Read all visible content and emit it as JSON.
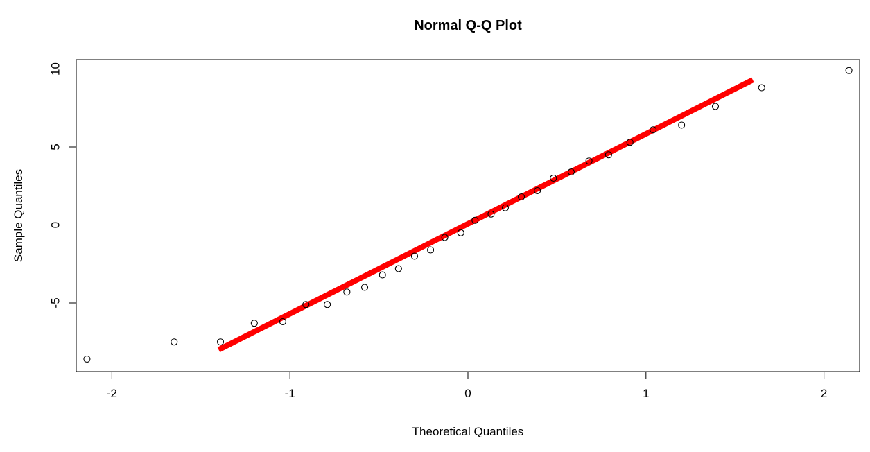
{
  "chart_data": {
    "type": "scatter",
    "title": "Normal Q-Q Plot",
    "xlabel": "Theoretical Quantiles",
    "ylabel": "Sample Quantiles",
    "xlim": [
      -2.2,
      2.2
    ],
    "ylim": [
      -9.4,
      10.6
    ],
    "x_ticks": [
      -2,
      -1,
      0,
      1,
      2
    ],
    "x_tick_labels": [
      "-2",
      "-1",
      "0",
      "1",
      "2"
    ],
    "y_ticks": [
      -5,
      0,
      5,
      10
    ],
    "y_tick_labels": [
      "-5",
      "0",
      "5",
      "10"
    ],
    "grid": false,
    "legend": "none",
    "x": [
      -2.14,
      -1.65,
      -1.39,
      -1.2,
      -1.04,
      -0.91,
      -0.79,
      -0.68,
      -0.58,
      -0.48,
      -0.39,
      -0.3,
      -0.21,
      -0.13,
      -0.04,
      0.04,
      0.13,
      0.21,
      0.3,
      0.39,
      0.48,
      0.58,
      0.68,
      0.79,
      0.91,
      1.04,
      1.2,
      1.39,
      1.65,
      2.14
    ],
    "y": [
      -8.6,
      -7.5,
      -7.5,
      -6.3,
      -6.2,
      -5.1,
      -5.1,
      -4.3,
      -4.0,
      -3.2,
      -2.8,
      -2.0,
      -1.6,
      -0.8,
      -0.5,
      0.3,
      0.7,
      1.1,
      1.8,
      2.2,
      3.0,
      3.4,
      4.1,
      4.5,
      5.3,
      6.1,
      6.4,
      7.6,
      8.8,
      9.9
    ],
    "reference_line": {
      "x": [
        -1.4,
        1.6
      ],
      "y": [
        -8.0,
        9.3
      ],
      "color": "#ff0000"
    },
    "point_color": "#000000"
  }
}
